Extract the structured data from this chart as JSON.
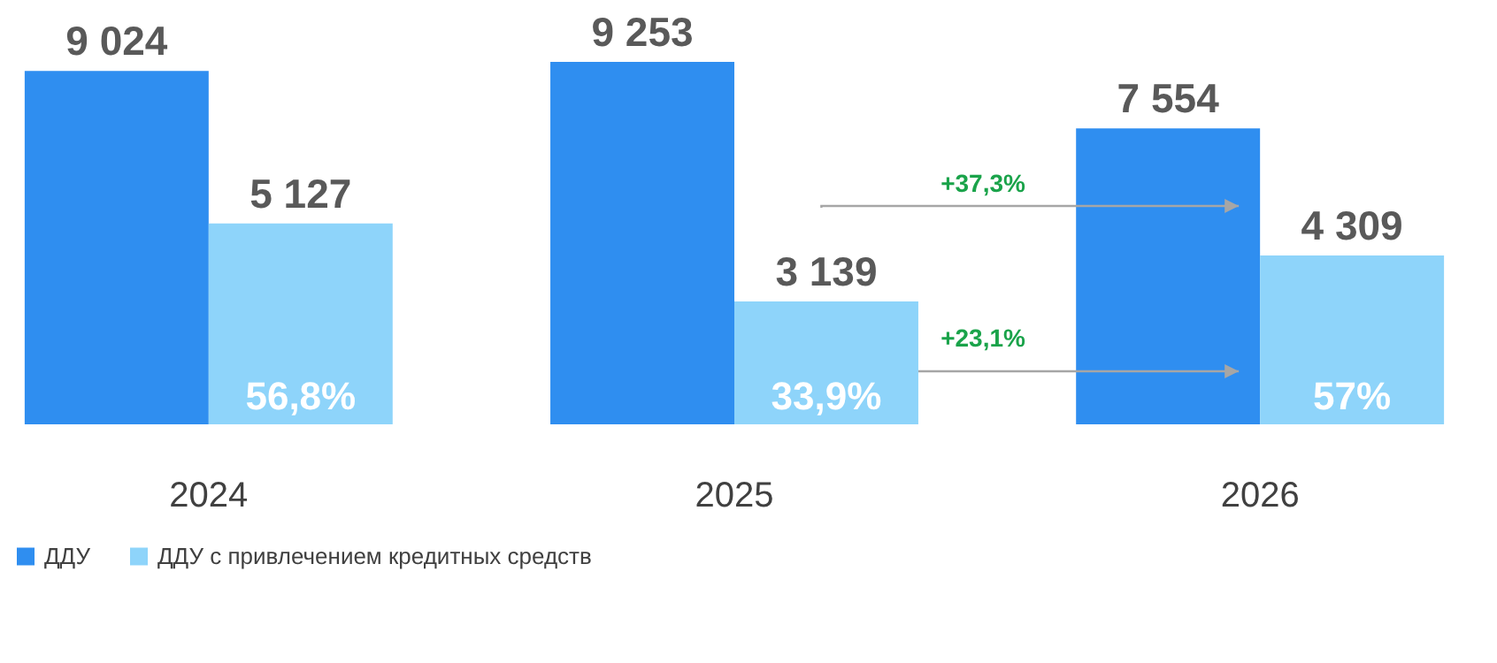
{
  "chart_data": {
    "type": "bar",
    "categories": [
      "2024",
      "2025",
      "2026"
    ],
    "series": [
      {
        "name": "ДДУ",
        "color": "#2f8ef0",
        "values": [
          9024,
          9253,
          7554
        ],
        "value_labels": [
          "9 024",
          "9 253",
          "7 554"
        ]
      },
      {
        "name": "ДДУ с привлечением кредитных средств",
        "color": "#8ed4fa",
        "values": [
          5127,
          3139,
          4309
        ],
        "value_labels": [
          "5 127",
          "3 139",
          "4 309"
        ]
      }
    ],
    "annotations": [
      {
        "text": "56,8%",
        "x": "2024",
        "y": 700
      },
      {
        "text": "33,9%",
        "x": "2025",
        "y": 700
      },
      {
        "text": "57%",
        "x": "2026",
        "y": 700
      },
      "+37,3%",
      "+23,1%"
    ],
    "legend": "bottom",
    "grid": false
  }
}
